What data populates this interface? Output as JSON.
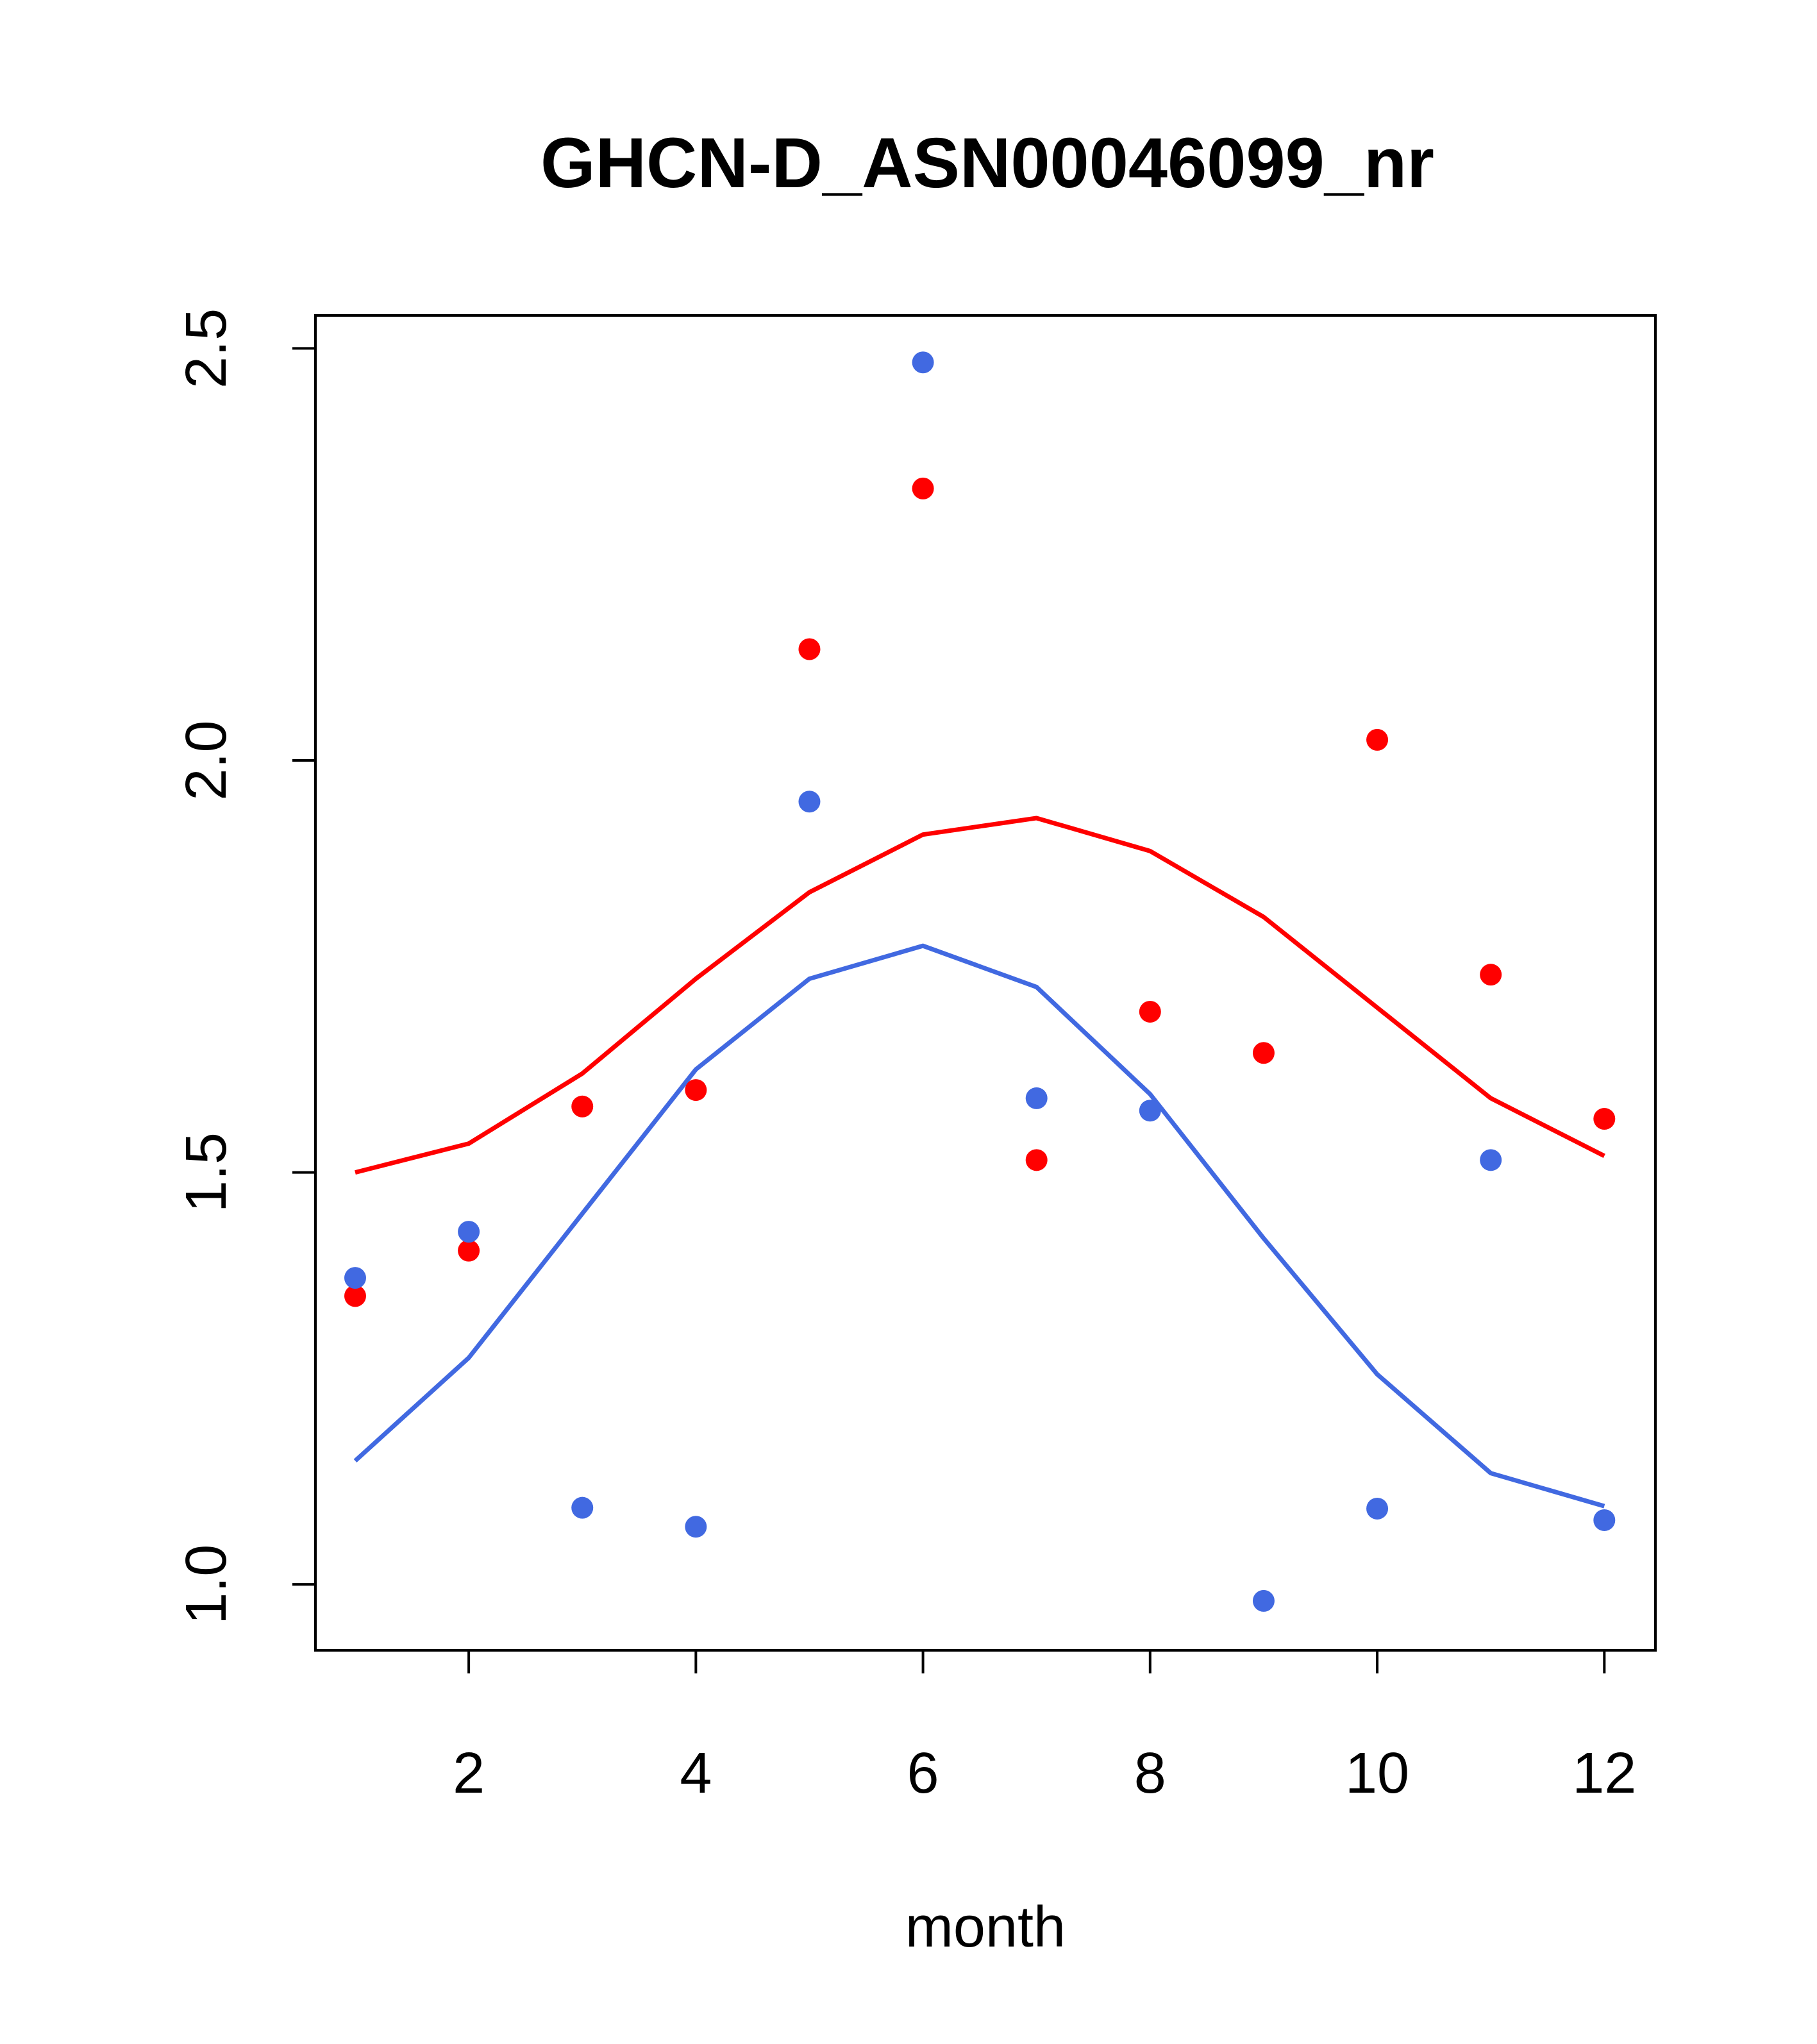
{
  "chart_data": {
    "type": "scatter",
    "title": "GHCN-D_ASN00046099_nr",
    "xlabel": "month",
    "ylabel": "",
    "xlim": [
      0.65,
      12.45
    ],
    "ylim": [
      0.92,
      2.54
    ],
    "x_ticks": [
      2,
      4,
      6,
      8,
      10,
      12
    ],
    "x_tick_labels": [
      "2",
      "4",
      "6",
      "8",
      "10",
      "12"
    ],
    "y_ticks": [
      1.0,
      1.5,
      2.0,
      2.5
    ],
    "y_tick_labels": [
      "1.0",
      "1.5",
      "2.0",
      "2.5"
    ],
    "grid": false,
    "x": [
      1,
      2,
      3,
      4,
      5,
      6,
      7,
      8,
      9,
      10,
      11,
      12
    ],
    "series": [
      {
        "name": "red points",
        "kind": "points",
        "color": "#ff0000",
        "values": [
          1.35,
          1.405,
          1.58,
          1.6,
          2.135,
          2.33,
          1.515,
          1.695,
          1.645,
          2.025,
          1.74,
          1.565
        ]
      },
      {
        "name": "blue points",
        "kind": "points",
        "color": "#4169e1",
        "values": [
          1.372,
          1.428,
          1.093,
          1.07,
          1.95,
          2.483,
          1.59,
          1.575,
          0.98,
          1.092,
          1.515,
          1.078
        ]
      },
      {
        "name": "red line",
        "kind": "line",
        "color": "#ff0000",
        "values": [
          1.5,
          1.535,
          1.62,
          1.735,
          1.84,
          1.91,
          1.93,
          1.89,
          1.81,
          1.7,
          1.59,
          1.52
        ]
      },
      {
        "name": "blue line",
        "kind": "line",
        "color": "#4169e1",
        "values": [
          1.15,
          1.275,
          1.45,
          1.625,
          1.735,
          1.775,
          1.725,
          1.595,
          1.42,
          1.255,
          1.135,
          1.095
        ]
      }
    ]
  }
}
